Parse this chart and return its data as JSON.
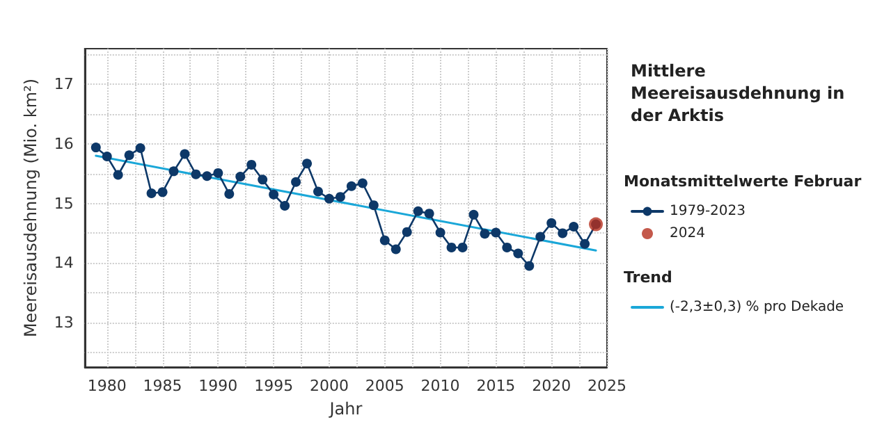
{
  "chart_data": {
    "type": "line",
    "title": "Mittlere Meereisausdehnung in der Arktis",
    "xlabel": "Jahr",
    "ylabel": "Meereisausdehnung (Mio. km²)",
    "legend_title": "Monatsmittelwerte Februar",
    "annotations": [
      "Trend"
    ],
    "xlim": [
      1978,
      2025
    ],
    "xticks": [
      1980,
      {
        "value": 1982.5,
        "label": null
      },
      1985,
      {
        "value": 1987.5,
        "label": null
      },
      1990,
      {
        "value": 1992.5,
        "label": null
      },
      1995,
      {
        "value": 1997.5,
        "label": null
      },
      2000,
      {
        "value": 2002.5,
        "label": null
      },
      2005,
      {
        "value": 2007.5,
        "label": null
      },
      2010,
      {
        "value": 2012.5,
        "label": null
      },
      2015,
      {
        "value": 2017.5,
        "label": null
      },
      2020,
      {
        "value": 2022.5,
        "label": null
      },
      2025
    ],
    "ylim": [
      12.25,
      17.6
    ],
    "yticks": [
      {
        "value": 12.5,
        "label": null
      },
      13,
      {
        "value": 13.5,
        "label": null
      },
      14,
      {
        "value": 14.5,
        "label": null
      },
      15,
      {
        "value": 15.5,
        "label": null
      },
      16,
      {
        "value": 16.5,
        "label": null
      },
      17,
      {
        "value": 17.5,
        "label": null
      }
    ],
    "grid": true,
    "legend": "right",
    "marker": "circle",
    "line_style": "solid",
    "series": [
      {
        "name": "1979-2023",
        "color": "#0d3868",
        "x": [
          1979,
          1980,
          1981,
          1982,
          1983,
          1984,
          1985,
          1986,
          1987,
          1988,
          1989,
          1990,
          1991,
          1992,
          1993,
          1994,
          1995,
          1996,
          1997,
          1998,
          1999,
          2000,
          2001,
          2002,
          2003,
          2004,
          2005,
          2006,
          2007,
          2008,
          2009,
          2010,
          2011,
          2012,
          2013,
          2014,
          2015,
          2016,
          2017,
          2018,
          2019,
          2020,
          2021,
          2022,
          2023,
          2024
        ],
        "values": [
          15.94,
          15.79,
          15.48,
          15.81,
          15.93,
          15.17,
          15.19,
          15.54,
          15.83,
          15.49,
          15.46,
          15.51,
          15.16,
          15.45,
          15.65,
          15.4,
          15.15,
          14.96,
          15.36,
          15.67,
          15.2,
          15.08,
          15.11,
          15.29,
          15.34,
          14.97,
          14.38,
          14.23,
          14.52,
          14.87,
          14.83,
          14.51,
          14.26,
          14.26,
          14.81,
          14.49,
          14.51,
          14.26,
          14.16,
          13.95,
          14.44,
          14.67,
          14.5,
          14.61,
          14.32,
          14.65
        ]
      },
      {
        "name": "2024",
        "color": "#b5301e",
        "type": "scatter",
        "x": [
          2024
        ],
        "values": [
          14.65
        ]
      },
      {
        "name": "(-2,3±0,3) % pro Dekade",
        "color": "#1aa7d8",
        "marker": "none",
        "x": [
          1979,
          2024
        ],
        "values": [
          15.8,
          14.21
        ]
      }
    ]
  }
}
